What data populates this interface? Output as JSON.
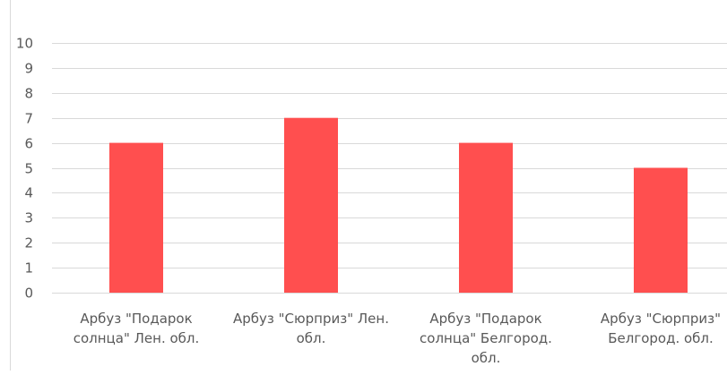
{
  "chart_data": {
    "type": "bar",
    "title": "",
    "xlabel": "",
    "ylabel": "",
    "categories": [
      [
        "Арбуз \"Подарок",
        "солнца\" Лен. обл."
      ],
      [
        "Арбуз \"Сюрприз\" Лен.",
        "обл."
      ],
      [
        "Арбуз \"Подарок",
        "солнца\" Белгород.",
        "обл."
      ],
      [
        "Арбуз \"Сюрприз\"",
        "Белгород. обл."
      ]
    ],
    "values": [
      6,
      7,
      6,
      5
    ],
    "ylim": [
      0,
      10
    ],
    "yticks": [
      "0",
      "1",
      "2",
      "3",
      "4",
      "5",
      "6",
      "7",
      "8",
      "9",
      "10"
    ],
    "grid": true,
    "legend": "none",
    "bar_color": "#ff4f4f"
  }
}
